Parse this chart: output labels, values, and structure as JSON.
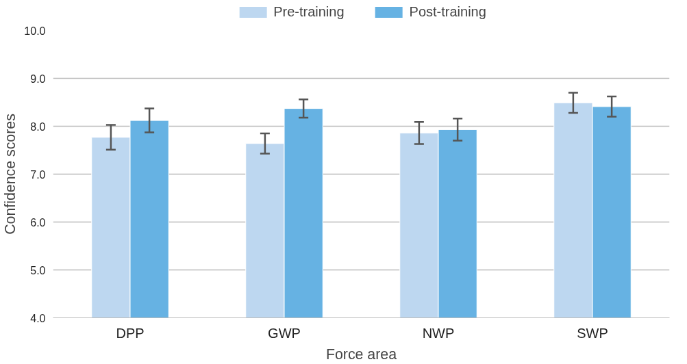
{
  "chart_data": {
    "type": "bar",
    "categories": [
      "DPP",
      "GWP",
      "NWP",
      "SWP"
    ],
    "xlabel": "Force area",
    "ylabel": "Confidence scores",
    "ylim": [
      4,
      10
    ],
    "yticks": [
      {
        "value": 4,
        "label": "4.0"
      },
      {
        "value": 5,
        "label": "5.0"
      },
      {
        "value": 6,
        "label": "6.0"
      },
      {
        "value": 7,
        "label": "7.0"
      },
      {
        "value": 8,
        "label": "8.0"
      },
      {
        "value": 9,
        "label": "9.0"
      },
      {
        "value": 10,
        "label": "10.0"
      }
    ],
    "grid": "y",
    "legend": "top",
    "series": [
      {
        "name": "Pre-training",
        "color": "#bdd7f0",
        "values": [
          7.77,
          7.64,
          7.86,
          8.49
        ],
        "errors": [
          0.26,
          0.21,
          0.23,
          0.21
        ]
      },
      {
        "name": "Post-training",
        "color": "#66b2e3",
        "values": [
          8.12,
          8.37,
          7.93,
          8.41
        ],
        "errors": [
          0.25,
          0.19,
          0.23,
          0.21
        ]
      }
    ]
  }
}
